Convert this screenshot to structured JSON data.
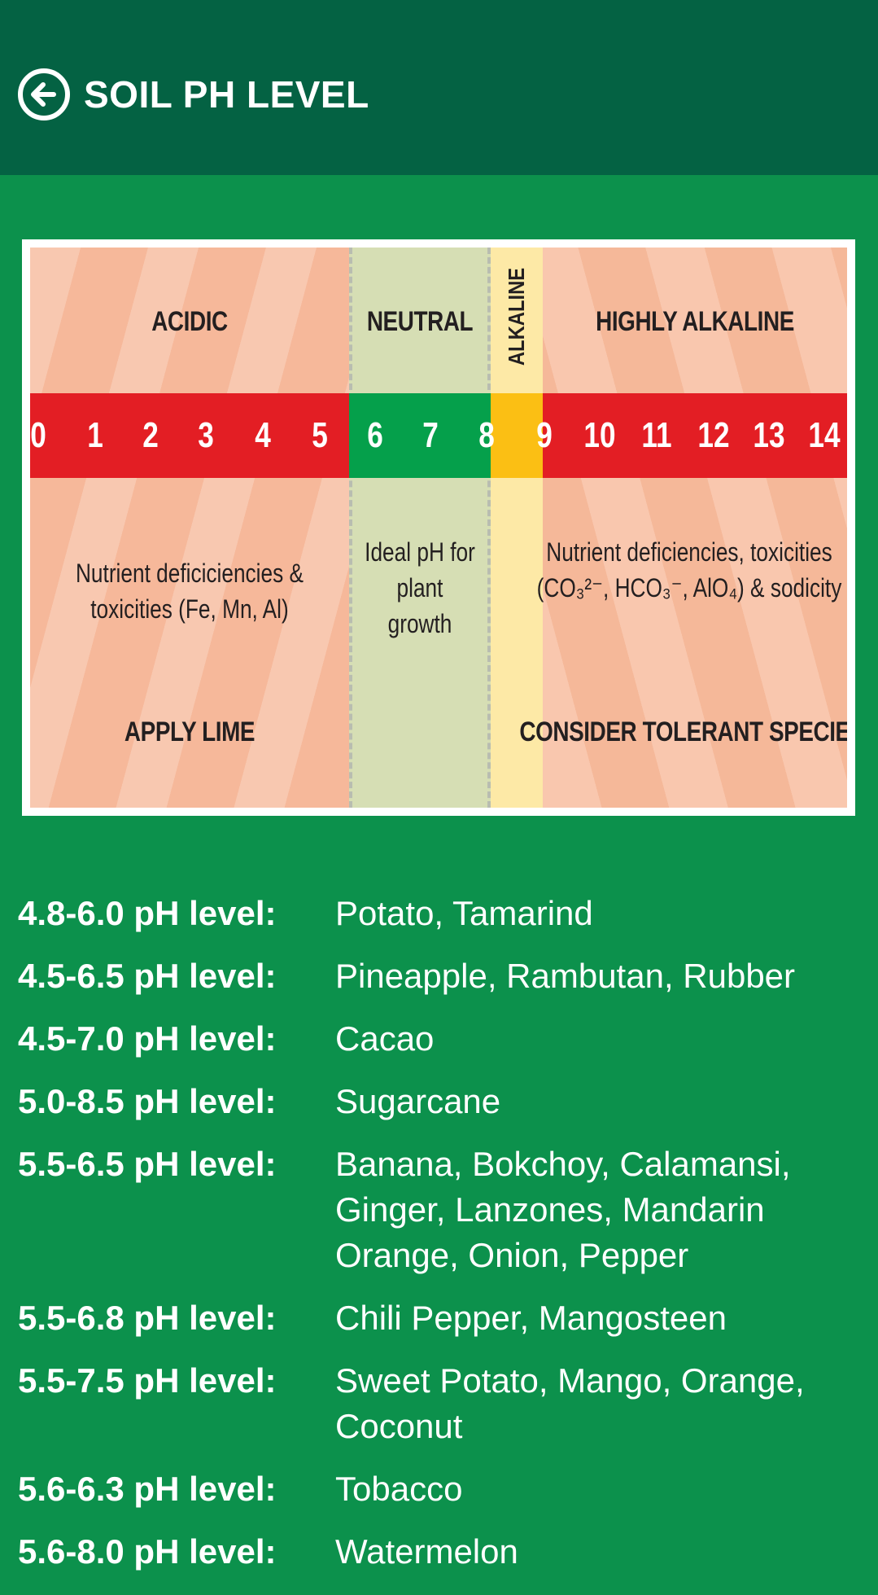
{
  "header": {
    "back_icon": "arrow-left-circle-icon",
    "title": "SOIL PH LEVEL",
    "background": "#046243"
  },
  "ph_chart": {
    "zones": {
      "acidic": "ACIDIC",
      "neutral": "NEUTRAL",
      "alkaline": "ALKALINE",
      "highly_alkaline": "HIGHLY ALKALINE"
    },
    "scale": [
      "0",
      "1",
      "2",
      "3",
      "4",
      "5",
      "6",
      "7",
      "8",
      "9",
      "10",
      "11",
      "12",
      "13",
      "14"
    ],
    "descriptions": {
      "acidic": "Nutrient deficiciencies & toxicities (Fe, Mn, Al)",
      "neutral": "Ideal pH for plant growth",
      "highly_alkaline": "Nutrient deficiencies, toxicities (CO₃²⁻, HCO₃⁻, AlO₄) & sodicity"
    },
    "actions": {
      "acidic": "APPLY LIME",
      "highly_alkaline": "CONSIDER TOLERANT SPECIES"
    },
    "colors": {
      "acid_bar": "#e31e24",
      "neutral_bar": "#05a04b",
      "alkaline_bar": "#fbbf14"
    }
  },
  "crops": [
    {
      "range": "4.8-6.0 pH level:",
      "names": "Potato, Tamarind"
    },
    {
      "range": "4.5-6.5 pH level:",
      "names": "Pineapple, Rambutan, Rubber"
    },
    {
      "range": "4.5-7.0 pH level:",
      "names": "Cacao"
    },
    {
      "range": "5.0-8.5 pH level:",
      "names": "Sugarcane"
    },
    {
      "range": "5.5-6.5 pH level:",
      "names": "Banana, Bokchoy, Calamansi, Ginger, Lanzones, Mandarin Orange, Onion, Pepper"
    },
    {
      "range": "5.5-6.8 pH level:",
      "names": "Chili Pepper, Mangosteen"
    },
    {
      "range": "5.5-7.5 pH level:",
      "names": "Sweet Potato, Mango, Orange, Coconut"
    },
    {
      "range": "5.6-6.3 pH level:",
      "names": "Tobacco"
    },
    {
      "range": "5.6-8.0 pH level:",
      "names": "Watermelon"
    }
  ],
  "theme": {
    "page_background": "#0c914c"
  }
}
